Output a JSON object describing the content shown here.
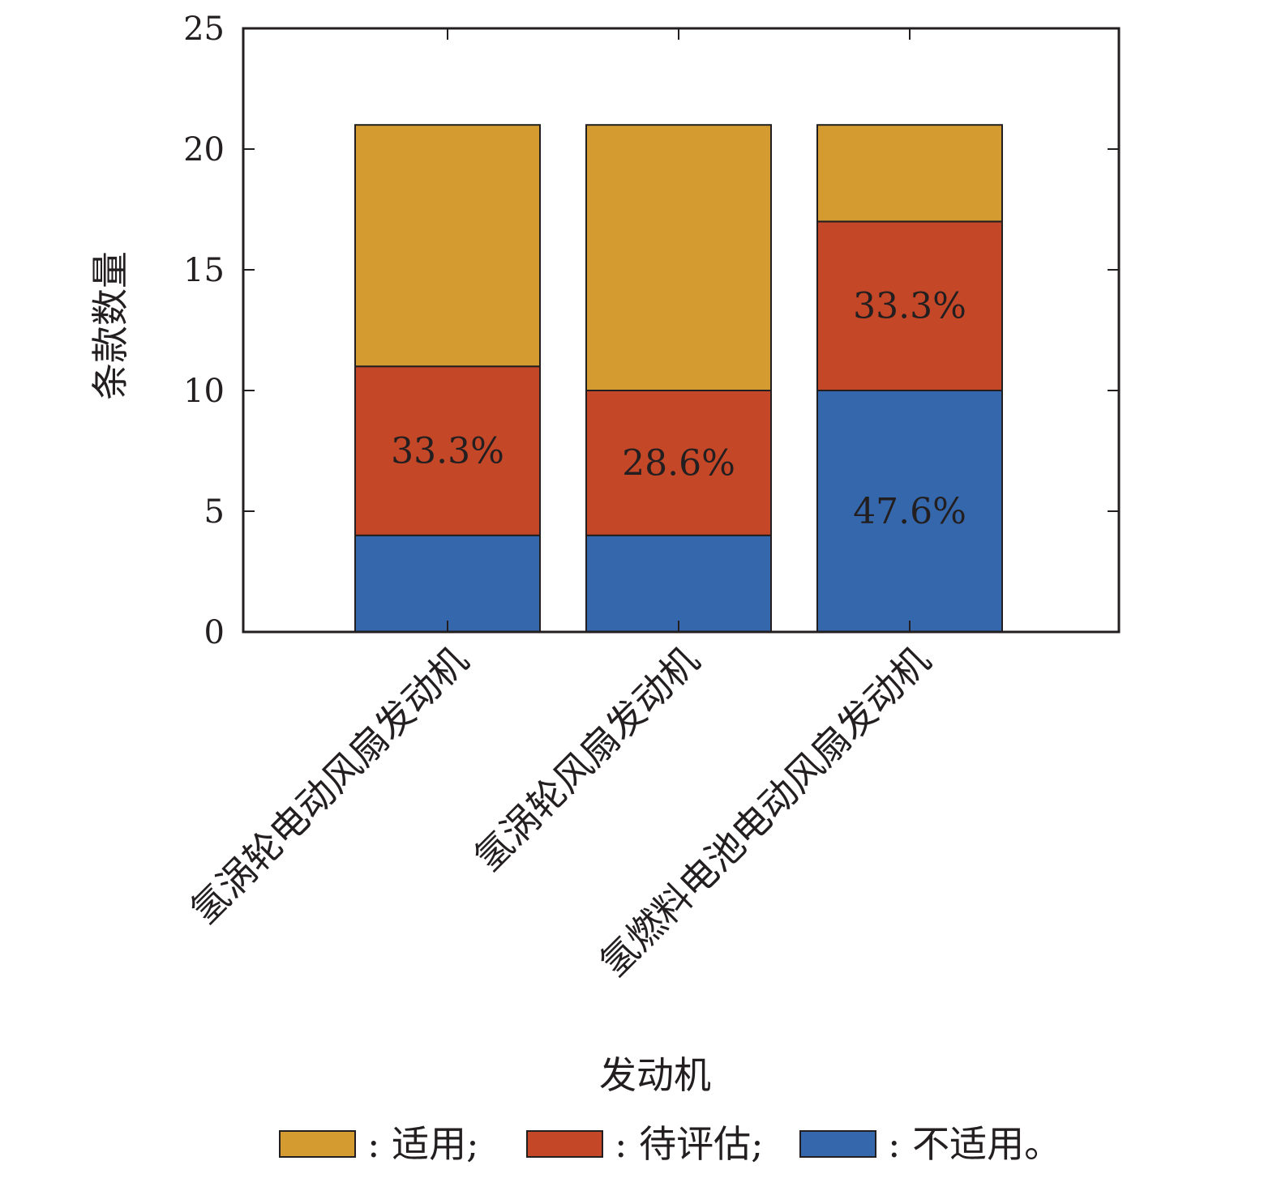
{
  "chart_data": {
    "type": "bar",
    "stacked": true,
    "xlabel": "发动机",
    "ylabel": "条款数量",
    "ylim": [
      0,
      25
    ],
    "yticks": [
      0,
      5,
      10,
      15,
      20,
      25
    ],
    "grid": false,
    "legend_position": "bottom",
    "categories": [
      "氢涡轮电动风扇发动机",
      "氢涡轮风扇发动机",
      "氢燃料电池电动风扇发动机"
    ],
    "series": [
      {
        "name": "不适用。",
        "color": "#3567ac",
        "values": [
          4,
          4,
          10
        ],
        "labels": [
          "",
          "",
          "47.6%"
        ]
      },
      {
        "name": "待评估;",
        "color": "#c44727",
        "values": [
          7,
          6,
          7
        ],
        "labels": [
          "33.3%",
          "28.6%",
          "33.3%"
        ]
      },
      {
        "name": "适用;",
        "color": "#d39b30",
        "values": [
          10,
          11,
          4
        ],
        "labels": [
          "",
          "",
          ""
        ]
      }
    ],
    "legend": [
      {
        "series": 2,
        "text": ": 适用;"
      },
      {
        "series": 1,
        "text": ": 待评估;"
      },
      {
        "series": 0,
        "text": ": 不适用。"
      }
    ]
  }
}
